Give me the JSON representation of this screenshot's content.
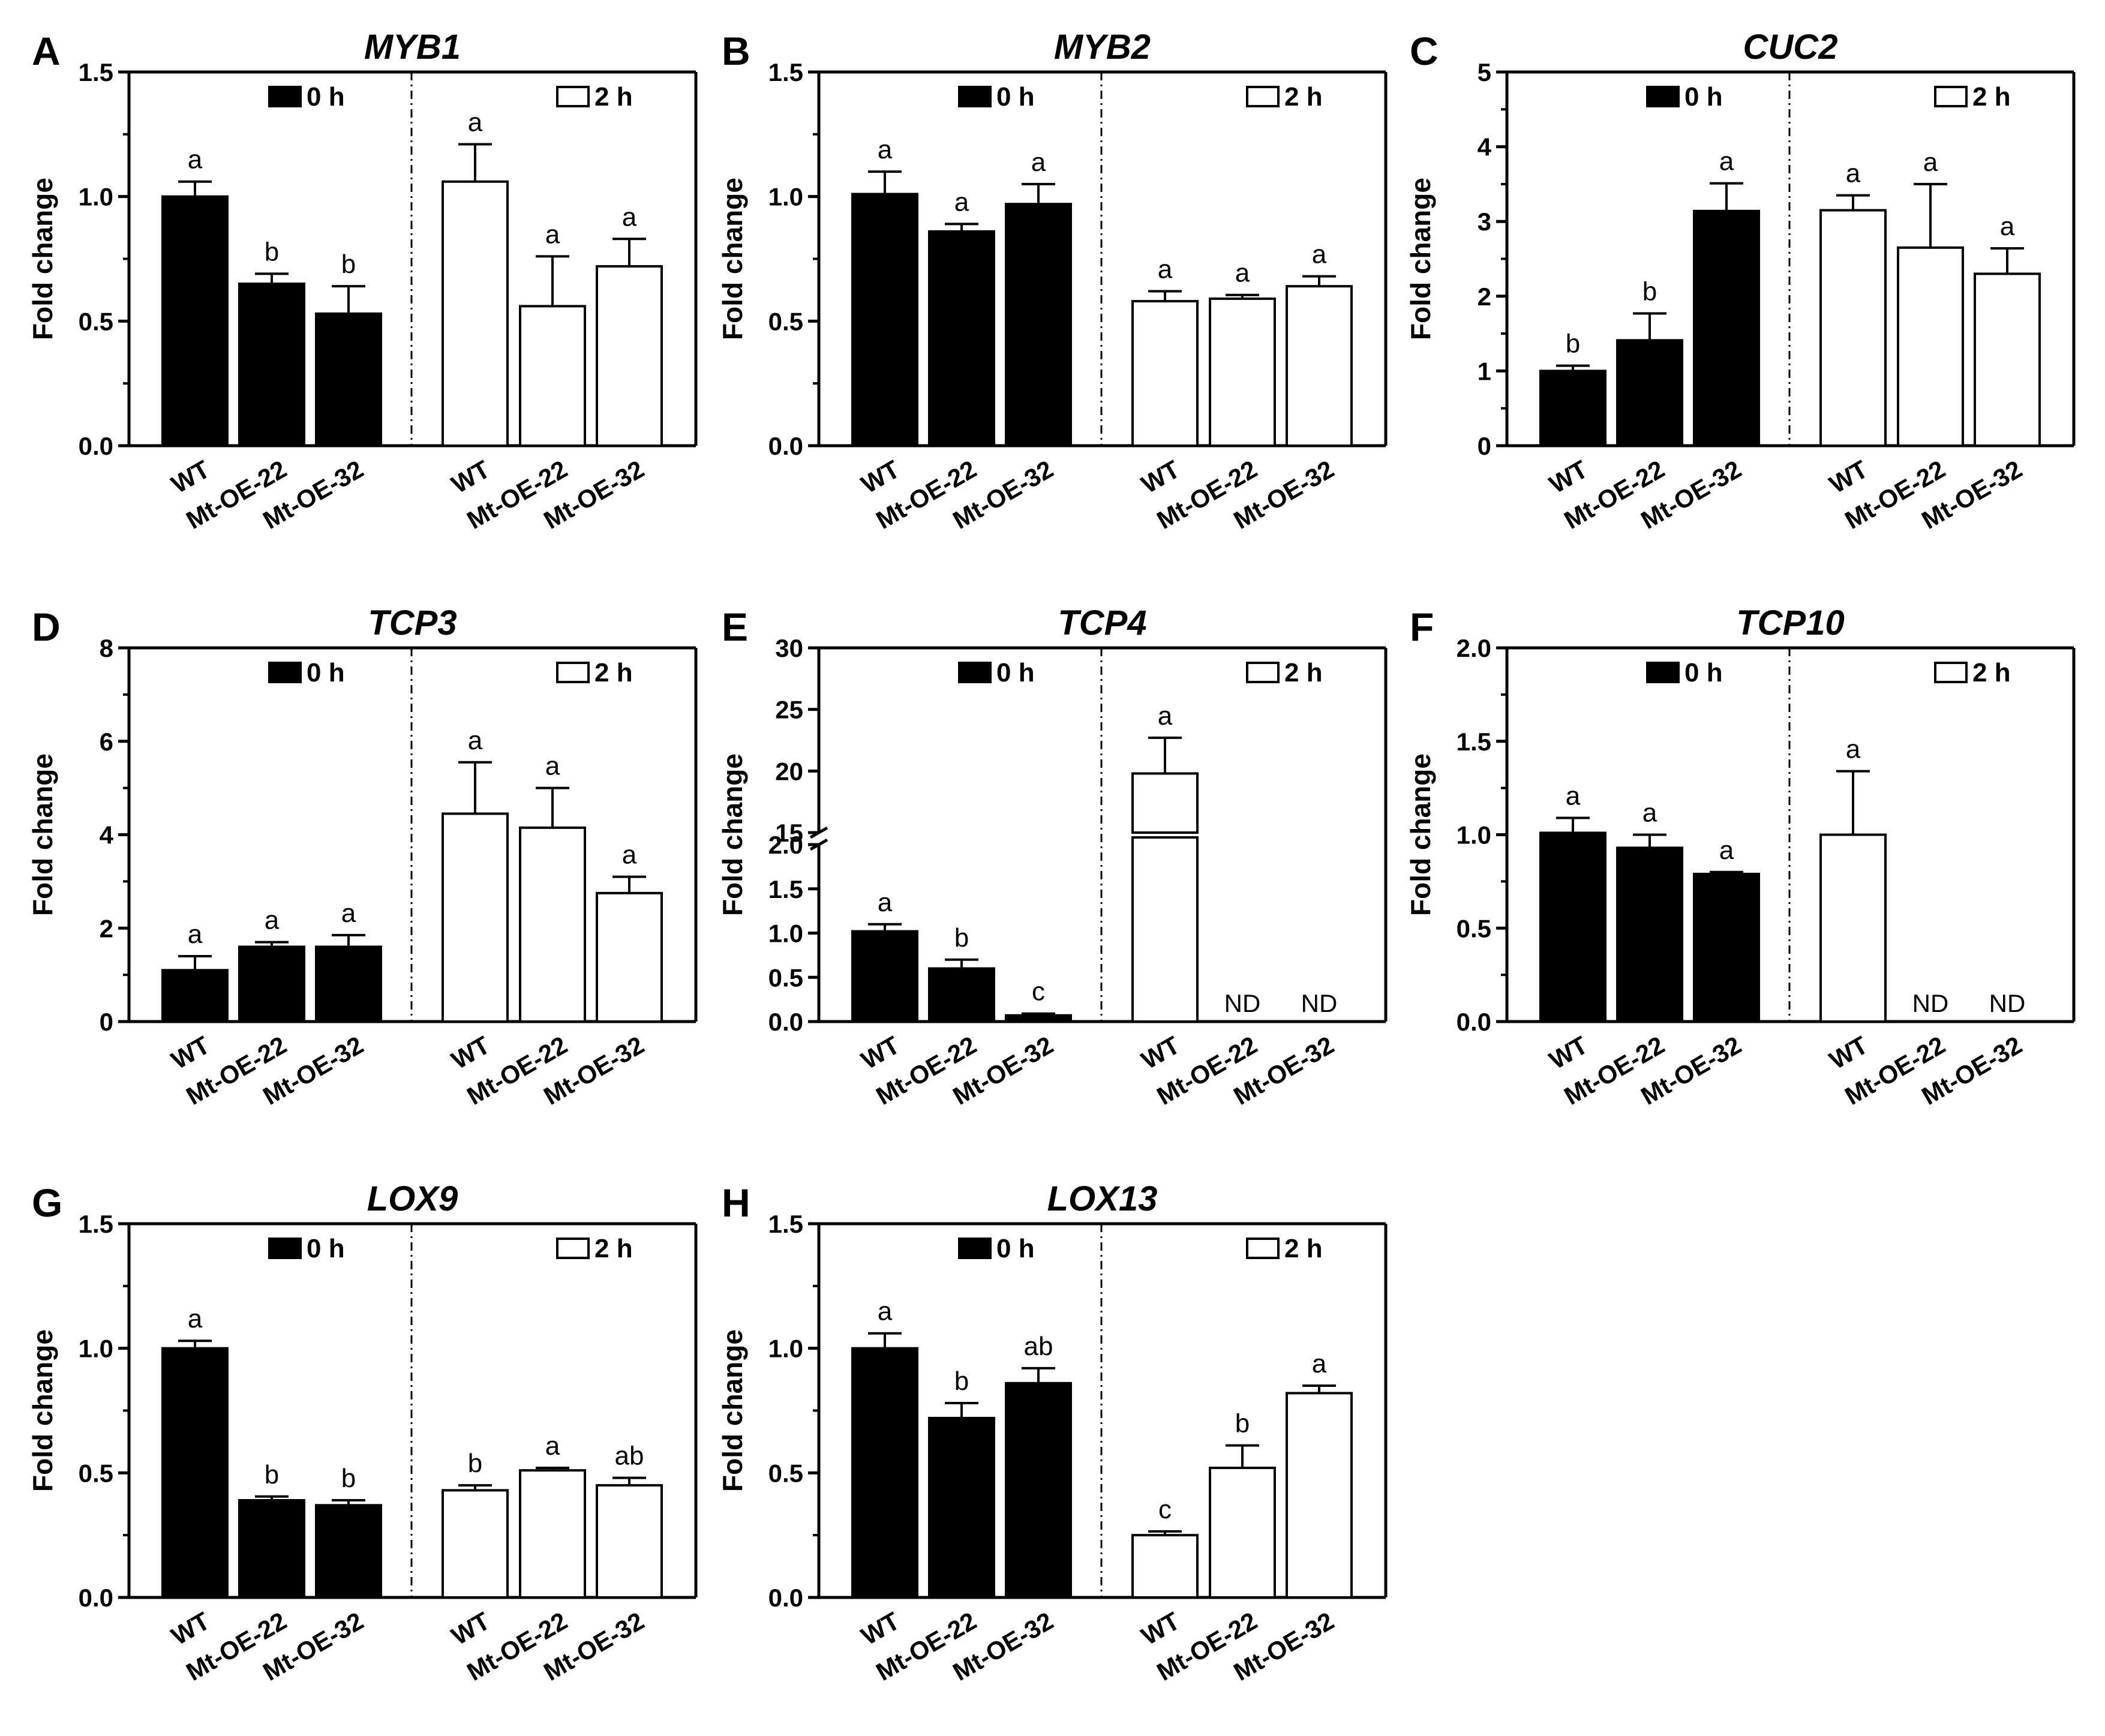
{
  "chart_data": [
    {
      "id": "A",
      "type": "bar",
      "panel_letter": "A",
      "title": "MYB1",
      "ylabel": "Fold change",
      "ylim": [
        0,
        1.5
      ],
      "yticks": [
        "0.0",
        "0.5",
        "1.0",
        "1.5"
      ],
      "legend": [
        "0 h",
        "2 h"
      ],
      "categories": [
        "WT",
        "Mt-OE-22",
        "Mt-OE-32"
      ],
      "series": [
        {
          "name": "0 h",
          "values": [
            1.0,
            0.65,
            0.53
          ],
          "errors": [
            0.06,
            0.04,
            0.11
          ],
          "sig": [
            "a",
            "b",
            "b"
          ],
          "nd": [
            false,
            false,
            false
          ]
        },
        {
          "name": "2 h",
          "values": [
            1.06,
            0.56,
            0.72
          ],
          "errors": [
            0.15,
            0.2,
            0.11
          ],
          "sig": [
            "a",
            "a",
            "a"
          ],
          "nd": [
            false,
            false,
            false
          ]
        }
      ]
    },
    {
      "id": "B",
      "type": "bar",
      "panel_letter": "B",
      "title": "MYB2",
      "ylabel": "Fold change",
      "ylim": [
        0,
        1.5
      ],
      "yticks": [
        "0.0",
        "0.5",
        "1.0",
        "1.5"
      ],
      "legend": [
        "0 h",
        "2 h"
      ],
      "categories": [
        "WT",
        "Mt-OE-22",
        "Mt-OE-32"
      ],
      "series": [
        {
          "name": "0 h",
          "values": [
            1.01,
            0.86,
            0.97
          ],
          "errors": [
            0.09,
            0.03,
            0.08
          ],
          "sig": [
            "a",
            "a",
            "a"
          ],
          "nd": [
            false,
            false,
            false
          ]
        },
        {
          "name": "2 h",
          "values": [
            0.58,
            0.59,
            0.64
          ],
          "errors": [
            0.04,
            0.015,
            0.04
          ],
          "sig": [
            "a",
            "a",
            "a"
          ],
          "nd": [
            false,
            false,
            false
          ]
        }
      ]
    },
    {
      "id": "C",
      "type": "bar",
      "panel_letter": "C",
      "title": "CUC2",
      "ylabel": "Fold change",
      "ylim": [
        0,
        5
      ],
      "yticks": [
        "0",
        "1",
        "2",
        "3",
        "4",
        "5"
      ],
      "legend": [
        "0 h",
        "2 h"
      ],
      "categories": [
        "WT",
        "Mt-OE-22",
        "Mt-OE-32"
      ],
      "series": [
        {
          "name": "0 h",
          "values": [
            1.0,
            1.41,
            3.14
          ],
          "errors": [
            0.07,
            0.36,
            0.37
          ],
          "sig": [
            "b",
            "b",
            "a"
          ],
          "nd": [
            false,
            false,
            false
          ]
        },
        {
          "name": "2 h",
          "values": [
            3.15,
            2.65,
            2.3
          ],
          "errors": [
            0.2,
            0.85,
            0.34
          ],
          "sig": [
            "a",
            "a",
            "a"
          ],
          "nd": [
            false,
            false,
            false
          ]
        }
      ]
    },
    {
      "id": "D",
      "type": "bar",
      "panel_letter": "D",
      "title": "TCP3",
      "ylabel": "Fold change",
      "ylim": [
        0,
        8
      ],
      "yticks": [
        "0",
        "2",
        "4",
        "6",
        "8"
      ],
      "legend": [
        "0 h",
        "2 h"
      ],
      "categories": [
        "WT",
        "Mt-OE-22",
        "Mt-OE-32"
      ],
      "series": [
        {
          "name": "0 h",
          "values": [
            1.1,
            1.6,
            1.6
          ],
          "errors": [
            0.3,
            0.1,
            0.25
          ],
          "sig": [
            "a",
            "a",
            "a"
          ],
          "nd": [
            false,
            false,
            false
          ]
        },
        {
          "name": "2 h",
          "values": [
            4.45,
            4.15,
            2.75
          ],
          "errors": [
            1.1,
            0.85,
            0.35
          ],
          "sig": [
            "a",
            "a",
            "a"
          ],
          "nd": [
            false,
            false,
            false
          ]
        }
      ]
    },
    {
      "id": "E",
      "type": "bar",
      "panel_letter": "E",
      "title": "TCP4",
      "ylabel": "Fold change",
      "ylim": [
        0,
        30
      ],
      "broken_axis": {
        "lower": [
          0,
          2
        ],
        "upper": [
          15,
          30
        ]
      },
      "yticks": [
        "0.0",
        "0.5",
        "1.0",
        "1.5",
        "2.0",
        "15",
        "20",
        "25",
        "30"
      ],
      "legend": [
        "0 h",
        "2 h"
      ],
      "categories": [
        "WT",
        "Mt-OE-22",
        "Mt-OE-32"
      ],
      "series": [
        {
          "name": "0 h",
          "values": [
            1.02,
            0.6,
            0.07
          ],
          "errors": [
            0.08,
            0.1,
            0.02
          ],
          "sig": [
            "a",
            "b",
            "c"
          ],
          "nd": [
            false,
            false,
            false
          ]
        },
        {
          "name": "2 h",
          "values": [
            19.8,
            0,
            0
          ],
          "errors": [
            2.9,
            0,
            0
          ],
          "sig": [
            "a",
            "ND",
            "ND"
          ],
          "nd": [
            false,
            true,
            true
          ]
        }
      ]
    },
    {
      "id": "F",
      "type": "bar",
      "panel_letter": "F",
      "title": "TCP10",
      "ylabel": "Fold change",
      "ylim": [
        0,
        2.0
      ],
      "yticks": [
        "0.0",
        "0.5",
        "1.0",
        "1.5",
        "2.0"
      ],
      "legend": [
        "0 h",
        "2 h"
      ],
      "categories": [
        "WT",
        "Mt-OE-22",
        "Mt-OE-32"
      ],
      "series": [
        {
          "name": "0 h",
          "values": [
            1.01,
            0.93,
            0.79
          ],
          "errors": [
            0.08,
            0.07,
            0.01
          ],
          "sig": [
            "a",
            "a",
            "a"
          ],
          "nd": [
            false,
            false,
            false
          ]
        },
        {
          "name": "2 h",
          "values": [
            1.0,
            0,
            0
          ],
          "errors": [
            0.34,
            0,
            0
          ],
          "sig": [
            "a",
            "ND",
            "ND"
          ],
          "nd": [
            false,
            true,
            true
          ]
        }
      ]
    },
    {
      "id": "G",
      "type": "bar",
      "panel_letter": "G",
      "title": "LOX9",
      "ylabel": "Fold change",
      "ylim": [
        0,
        1.5
      ],
      "yticks": [
        "0.0",
        "0.5",
        "1.0",
        "1.5"
      ],
      "legend": [
        "0 h",
        "2 h"
      ],
      "categories": [
        "WT",
        "Mt-OE-22",
        "Mt-OE-32"
      ],
      "series": [
        {
          "name": "0 h",
          "values": [
            1.0,
            0.39,
            0.37
          ],
          "errors": [
            0.03,
            0.015,
            0.02
          ],
          "sig": [
            "a",
            "b",
            "b"
          ],
          "nd": [
            false,
            false,
            false
          ]
        },
        {
          "name": "2 h",
          "values": [
            0.43,
            0.51,
            0.45
          ],
          "errors": [
            0.02,
            0.01,
            0.03
          ],
          "sig": [
            "b",
            "a",
            "ab"
          ],
          "nd": [
            false,
            false,
            false
          ]
        }
      ]
    },
    {
      "id": "H",
      "type": "bar",
      "panel_letter": "H",
      "title": "LOX13",
      "ylabel": "Fold change",
      "ylim": [
        0,
        1.5
      ],
      "yticks": [
        "0.0",
        "0.5",
        "1.0",
        "1.5"
      ],
      "legend": [
        "0 h",
        "2 h"
      ],
      "categories": [
        "WT",
        "Mt-OE-22",
        "Mt-OE-32"
      ],
      "series": [
        {
          "name": "0 h",
          "values": [
            1.0,
            0.72,
            0.86
          ],
          "errors": [
            0.06,
            0.06,
            0.06
          ],
          "sig": [
            "a",
            "b",
            "ab"
          ],
          "nd": [
            false,
            false,
            false
          ]
        },
        {
          "name": "2 h",
          "values": [
            0.25,
            0.52,
            0.82
          ],
          "errors": [
            0.015,
            0.09,
            0.03
          ],
          "sig": [
            "c",
            "b",
            "a"
          ],
          "nd": [
            false,
            false,
            false
          ]
        }
      ]
    }
  ]
}
